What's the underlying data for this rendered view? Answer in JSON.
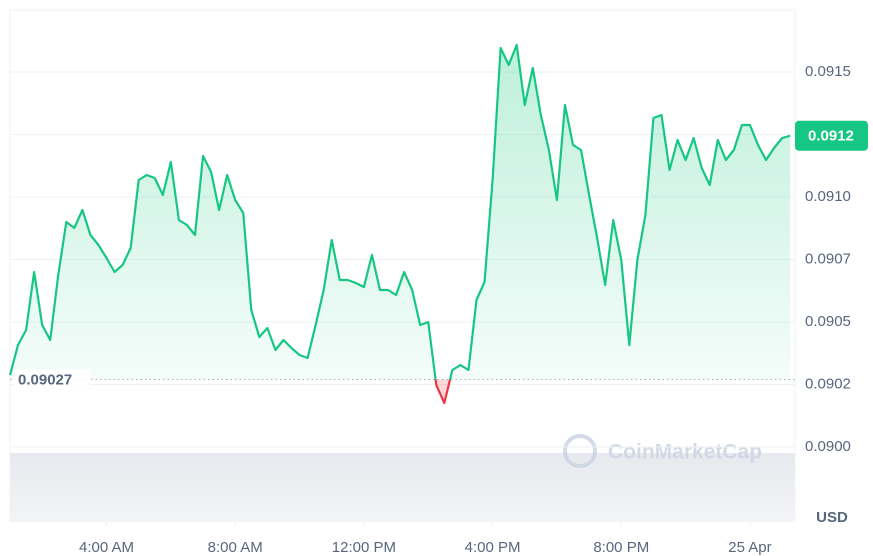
{
  "chart_data": {
    "type": "line",
    "color": "#16c784",
    "below_color": "#ea3943",
    "grid": true,
    "currency": "USD",
    "watermark": "CoinMarketCap",
    "baseline": {
      "value": 0.09027,
      "label": "0.09027"
    },
    "current": {
      "value": 0.091245,
      "label": "0.0912"
    },
    "xlim": [
      1,
      25.4
    ],
    "ylim": [
      0.0897,
      0.091748
    ],
    "xticks": [
      {
        "value": 4,
        "label": "4:00 AM"
      },
      {
        "value": 8,
        "label": "8:00 AM"
      },
      {
        "value": 12,
        "label": "12:00 PM"
      },
      {
        "value": 16,
        "label": "4:00 PM"
      },
      {
        "value": 20,
        "label": "8:00 PM"
      },
      {
        "value": 24,
        "label": "25 Apr"
      }
    ],
    "yticks": [
      {
        "value": 0.09,
        "label": "0.0900"
      },
      {
        "value": 0.09025,
        "label": "0.0902"
      },
      0.0905,
      {
        "value": 0.09075,
        "label": "0.0907"
      },
      {
        "value": 0.091,
        "label": "0.0910"
      },
      {
        "value": 0.09125,
        "label": "0.0912"
      },
      0.0915
    ],
    "x": [
      1,
      1.25,
      1.5,
      1.75,
      2,
      2.25,
      2.5,
      2.75,
      3,
      3.25,
      3.5,
      3.75,
      4,
      4.25,
      4.5,
      4.75,
      5,
      5.25,
      5.5,
      5.75,
      6,
      6.25,
      6.5,
      6.75,
      7,
      7.25,
      7.5,
      7.75,
      8,
      8.25,
      8.5,
      8.75,
      9,
      9.25,
      9.5,
      9.75,
      10,
      10.25,
      10.5,
      10.75,
      11,
      11.25,
      11.5,
      11.75,
      12,
      12.25,
      12.5,
      12.75,
      13,
      13.25,
      13.5,
      13.75,
      14,
      14.25,
      14.5,
      14.75,
      15,
      15.25,
      15.5,
      15.75,
      16,
      16.25,
      16.5,
      16.75,
      17,
      17.25,
      17.5,
      17.75,
      18,
      18.25,
      18.5,
      18.75,
      19,
      19.25,
      19.5,
      19.75,
      20,
      20.25,
      20.5,
      20.75,
      21,
      21.25,
      21.5,
      21.75,
      22,
      22.25,
      22.5,
      22.75,
      23,
      23.25,
      23.5,
      23.75,
      24,
      24.25,
      24.5,
      24.75,
      25,
      25.25
    ],
    "values": [
      0.090288,
      0.090408,
      0.090468,
      0.0907,
      0.090488,
      0.090428,
      0.090688,
      0.0909,
      0.090876,
      0.090948,
      0.090848,
      0.090808,
      0.090756,
      0.0907,
      0.090728,
      0.090796,
      0.091068,
      0.091088,
      0.091076,
      0.091008,
      0.09114,
      0.090908,
      0.090888,
      0.090848,
      0.091164,
      0.0911,
      0.090948,
      0.091088,
      0.090988,
      0.090936,
      0.090548,
      0.09044,
      0.090476,
      0.090388,
      0.090428,
      0.090396,
      0.090368,
      0.090356,
      0.090488,
      0.090628,
      0.090828,
      0.090668,
      0.090668,
      0.090656,
      0.09064,
      0.090768,
      0.090628,
      0.090628,
      0.090608,
      0.0907,
      0.090628,
      0.090488,
      0.0905,
      0.090248,
      0.090176,
      0.090308,
      0.090328,
      0.090308,
      0.090588,
      0.09066,
      0.091068,
      0.091596,
      0.091528,
      0.091608,
      0.091368,
      0.091516,
      0.091328,
      0.091188,
      0.090988,
      0.091368,
      0.091208,
      0.091188,
      0.091008,
      0.090836,
      0.090648,
      0.090908,
      0.090748,
      0.090408,
      0.090748,
      0.090928,
      0.091316,
      0.091328,
      0.091108,
      0.091228,
      0.091148,
      0.091236,
      0.091116,
      0.091048,
      0.091228,
      0.091148,
      0.091188,
      0.091288,
      0.091288,
      0.091208,
      0.091148,
      0.091196,
      0.091236,
      0.091245
    ]
  }
}
